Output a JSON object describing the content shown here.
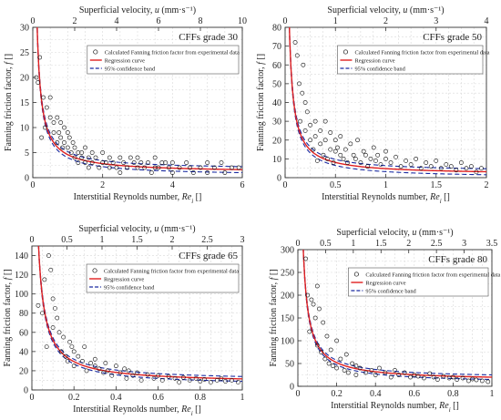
{
  "colors": {
    "axis": "#333333",
    "grid": "#d9d9d9",
    "regression": "#e02020",
    "confidence": "#1a2aa0",
    "points": "#111111"
  },
  "legend_entries": {
    "points": "Calculated Fanning friction factor from experimental data",
    "regression": "Regression curve",
    "confidence": "95% confidence band"
  },
  "chart_data": [
    {
      "type": "scatter",
      "title": "CFFs grade 30",
      "xlabel": "Interstitial Reynolds number, Re_i []",
      "ylabel": "Fanning friction factor, f []",
      "x2label": "Superficial velocity, u (mm·s⁻¹)",
      "xlim": [
        0,
        6
      ],
      "ylim": [
        0,
        30
      ],
      "x2lim": [
        0,
        10
      ],
      "xticks": [
        0,
        2,
        4,
        6
      ],
      "yticks": [
        0,
        5,
        10,
        15,
        20,
        25,
        30
      ],
      "x2ticks": [
        0,
        2,
        4,
        6,
        8,
        10
      ],
      "legend_position": "top-right",
      "grid": true,
      "regression": {
        "model": "f = a / Re_i + b",
        "a": 3.6,
        "b": 1.0,
        "band": 0.6
      },
      "series": [
        {
          "name": "Calculated Fanning friction factor from experimental data",
          "x": [
            0.1,
            0.15,
            0.2,
            0.25,
            0.3,
            0.35,
            0.4,
            0.5,
            0.5,
            0.6,
            0.6,
            0.7,
            0.7,
            0.75,
            0.8,
            0.8,
            0.85,
            0.9,
            0.9,
            1.0,
            1.0,
            1.05,
            1.1,
            1.15,
            1.2,
            1.2,
            1.3,
            1.3,
            1.4,
            1.4,
            1.5,
            1.5,
            1.6,
            1.6,
            1.7,
            1.7,
            1.8,
            1.9,
            2.0,
            2.0,
            2.1,
            2.2,
            2.2,
            2.3,
            2.4,
            2.5,
            2.5,
            2.6,
            2.7,
            2.8,
            2.9,
            3.0,
            3.0,
            3.1,
            3.2,
            3.3,
            3.4,
            3.5,
            3.5,
            3.6,
            3.7,
            3.8,
            3.9,
            4.0,
            4.0,
            4.2,
            4.4,
            4.5,
            4.6,
            4.8,
            5.0,
            5.0,
            5.2,
            5.4,
            5.5,
            5.7,
            5.9
          ],
          "y": [
            20,
            19,
            24,
            8,
            16,
            10,
            14,
            16,
            12,
            9,
            11,
            7,
            12,
            9,
            8,
            11,
            6,
            10,
            7,
            9,
            6,
            8,
            5,
            7,
            4,
            6,
            5,
            3,
            4,
            5,
            3,
            6,
            4,
            2,
            5,
            3,
            4,
            2,
            5,
            3,
            3,
            4,
            2,
            3,
            2,
            4,
            1,
            3,
            2,
            4,
            3,
            2,
            4,
            3,
            2,
            3,
            1,
            2,
            4,
            2,
            3,
            3,
            2,
            3,
            1,
            2,
            3,
            2,
            1,
            2,
            3,
            1,
            2,
            3,
            1,
            2,
            2
          ]
        }
      ]
    },
    {
      "type": "scatter",
      "title": "CFFs grade 50",
      "xlabel": "Interstitial Reynolds number, Re_i []",
      "ylabel": "Fanning friction factor, f []",
      "x2label": "Superficial velocity, u (mm·s⁻¹)",
      "xlim": [
        0,
        2.0
      ],
      "ylim": [
        0,
        80
      ],
      "x2lim": [
        0,
        4.0
      ],
      "xticks": [
        0,
        0.5,
        1.0,
        1.5,
        2.0
      ],
      "yticks": [
        0,
        10,
        20,
        30,
        40,
        50,
        60,
        70,
        80
      ],
      "x2ticks": [
        0,
        1.0,
        2.0,
        3.0,
        4.0
      ],
      "legend_position": "top-right",
      "grid": true,
      "regression": {
        "model": "f = a / Re_i + b",
        "a": 3.3,
        "b": 1.5,
        "band": 1.6
      },
      "series": [
        {
          "name": "Calculated Fanning friction factor from experimental data",
          "x": [
            0.1,
            0.12,
            0.14,
            0.15,
            0.17,
            0.18,
            0.2,
            0.2,
            0.22,
            0.25,
            0.25,
            0.28,
            0.3,
            0.3,
            0.32,
            0.35,
            0.35,
            0.38,
            0.4,
            0.4,
            0.42,
            0.45,
            0.45,
            0.48,
            0.5,
            0.5,
            0.52,
            0.55,
            0.55,
            0.58,
            0.6,
            0.62,
            0.65,
            0.68,
            0.7,
            0.72,
            0.75,
            0.78,
            0.8,
            0.82,
            0.85,
            0.88,
            0.9,
            0.92,
            0.95,
            1.0,
            1.0,
            1.05,
            1.1,
            1.15,
            1.2,
            1.25,
            1.3,
            1.35,
            1.4,
            1.45,
            1.5,
            1.55,
            1.6,
            1.65,
            1.7,
            1.75,
            1.8,
            1.85,
            1.9,
            1.95
          ],
          "y": [
            72,
            65,
            50,
            30,
            45,
            60,
            40,
            25,
            35,
            20,
            28,
            15,
            30,
            22,
            9,
            25,
            18,
            12,
            20,
            30,
            10,
            15,
            24,
            8,
            14,
            20,
            16,
            12,
            22,
            10,
            15,
            8,
            18,
            12,
            10,
            20,
            8,
            14,
            12,
            6,
            10,
            16,
            9,
            12,
            7,
            10,
            14,
            8,
            11,
            6,
            9,
            7,
            10,
            5,
            8,
            6,
            9,
            5,
            7,
            6,
            4,
            8,
            5,
            6,
            3,
            5
          ]
        }
      ]
    },
    {
      "type": "scatter",
      "title": "CFFs grade 65",
      "xlabel": "Interstitial Reynolds number, Re_i []",
      "ylabel": "Fanning friction factor, f []",
      "x2label": "Superficial velocity, u (mm·s⁻¹)",
      "xlim": [
        0,
        1.0
      ],
      "ylim": [
        0,
        150
      ],
      "x2lim": [
        0,
        3.0
      ],
      "xticks": [
        0,
        0.2,
        0.4,
        0.6,
        0.8,
        1.0
      ],
      "yticks": [
        0,
        20,
        40,
        60,
        80,
        100,
        120,
        140
      ],
      "x2ticks": [
        0,
        0.5,
        1.0,
        1.5,
        2.0,
        2.5,
        3.0
      ],
      "legend_position": "top-right",
      "grid": true,
      "regression": {
        "model": "f = a / Re_i + b",
        "a": 4.5,
        "b": 7.0,
        "band": 2.5
      },
      "series": [
        {
          "name": "Calculated Fanning friction factor from experimental data",
          "x": [
            0.03,
            0.05,
            0.06,
            0.07,
            0.08,
            0.09,
            0.1,
            0.1,
            0.11,
            0.12,
            0.13,
            0.14,
            0.15,
            0.16,
            0.17,
            0.18,
            0.19,
            0.2,
            0.2,
            0.22,
            0.24,
            0.25,
            0.26,
            0.28,
            0.3,
            0.3,
            0.32,
            0.34,
            0.35,
            0.36,
            0.38,
            0.4,
            0.42,
            0.44,
            0.45,
            0.46,
            0.48,
            0.5,
            0.52,
            0.55,
            0.58,
            0.6,
            0.62,
            0.65,
            0.68,
            0.7,
            0.72,
            0.75,
            0.78,
            0.8,
            0.82,
            0.85,
            0.88,
            0.9,
            0.92,
            0.95,
            0.98
          ],
          "y": [
            88,
            80,
            115,
            45,
            140,
            125,
            95,
            65,
            85,
            75,
            60,
            40,
            55,
            35,
            30,
            50,
            45,
            25,
            40,
            35,
            30,
            45,
            20,
            28,
            32,
            25,
            22,
            18,
            28,
            20,
            15,
            25,
            18,
            22,
            12,
            20,
            15,
            18,
            10,
            16,
            12,
            15,
            10,
            14,
            12,
            8,
            13,
            10,
            12,
            9,
            11,
            8,
            10,
            12,
            9,
            10,
            8
          ]
        }
      ]
    },
    {
      "type": "scatter",
      "title": "CFFs grade 80",
      "xlabel": "Interstitial Reynolds number, Re_i []",
      "ylabel": "Fanning friction factor, f []",
      "x2label": "Superficial velocity, u (mm·s⁻¹)",
      "xlim": [
        0,
        1.0
      ],
      "ylim": [
        0,
        300
      ],
      "x2lim": [
        0,
        3.5
      ],
      "xticks": [
        0,
        0.2,
        0.4,
        0.6,
        0.8,
        1.0
      ],
      "yticks": [
        0,
        50,
        100,
        150,
        200,
        250,
        300
      ],
      "x2ticks": [
        0,
        0.5,
        1.0,
        1.5,
        2.0,
        2.5,
        3.0,
        3.5
      ],
      "legend_position": "top-right",
      "grid": true,
      "regression": {
        "model": "f = a / Re_i + b",
        "a": 8.0,
        "b": 12.0,
        "band": 5.0
      },
      "series": [
        {
          "name": "Calculated Fanning friction factor from experimental data",
          "x": [
            0.04,
            0.05,
            0.06,
            0.07,
            0.08,
            0.09,
            0.1,
            0.1,
            0.11,
            0.12,
            0.13,
            0.14,
            0.15,
            0.16,
            0.17,
            0.18,
            0.2,
            0.2,
            0.22,
            0.24,
            0.25,
            0.26,
            0.28,
            0.3,
            0.3,
            0.32,
            0.35,
            0.38,
            0.4,
            0.42,
            0.45,
            0.48,
            0.5,
            0.52,
            0.55,
            0.58,
            0.6,
            0.62,
            0.65,
            0.68,
            0.7,
            0.72,
            0.75,
            0.78,
            0.8,
            0.82,
            0.85,
            0.88,
            0.9,
            0.92,
            0.95,
            0.98
          ],
          "y": [
            280,
            200,
            120,
            190,
            180,
            150,
            220,
            90,
            170,
            75,
            140,
            60,
            110,
            50,
            80,
            45,
            100,
            40,
            60,
            35,
            70,
            30,
            50,
            45,
            25,
            40,
            30,
            35,
            25,
            40,
            30,
            20,
            35,
            25,
            30,
            20,
            25,
            22,
            18,
            28,
            20,
            15,
            22,
            18,
            20,
            15,
            18,
            12,
            16,
            14,
            12,
            10
          ]
        }
      ]
    }
  ]
}
